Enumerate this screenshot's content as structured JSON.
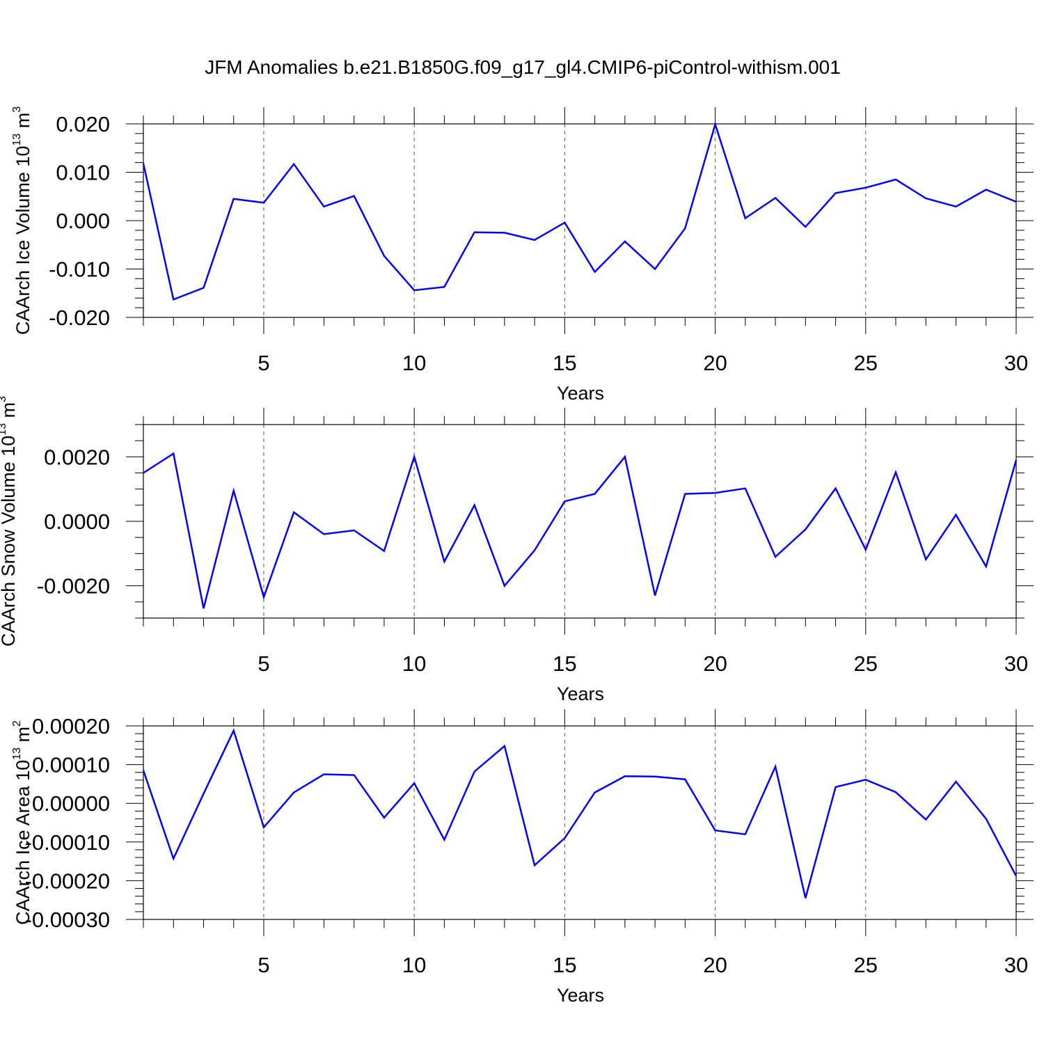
{
  "title": "JFM Anomalies b.e21.B1850G.f09_g17_gl4.CMIP6-piControl-withism.001",
  "chart_data": [
    {
      "type": "line",
      "xlabel": "Years",
      "ylabel": {
        "main": "CAArch Ice Volume 10",
        "sup": "13",
        "unit": " m",
        "unit_sup": "3"
      },
      "xlim": [
        1,
        30
      ],
      "ylim": [
        -0.02,
        0.02
      ],
      "xticks": [
        5,
        10,
        15,
        20,
        25,
        30
      ],
      "yticks": [
        -0.02,
        -0.01,
        0.0,
        0.01,
        0.02
      ],
      "ytick_labels": [
        "-0.020",
        "-0.010",
        "0.000",
        "0.010",
        "0.020"
      ],
      "y_minor_step": 0.002,
      "x": [
        1,
        2,
        3,
        4,
        5,
        6,
        7,
        8,
        9,
        10,
        11,
        12,
        13,
        14,
        15,
        16,
        17,
        18,
        19,
        20,
        21,
        22,
        23,
        24,
        25,
        26,
        27,
        28,
        29,
        30
      ],
      "values": [
        0.0118,
        -0.0163,
        -0.0139,
        0.0045,
        0.0037,
        0.0117,
        0.0029,
        0.0051,
        -0.0073,
        -0.0144,
        -0.0137,
        -0.0024,
        -0.0025,
        -0.004,
        -0.0004,
        -0.0106,
        -0.0043,
        -0.01,
        -0.0016,
        0.0199,
        0.0005,
        0.0047,
        -0.0013,
        0.0057,
        0.0068,
        0.0085,
        0.0046,
        0.0029,
        0.0064,
        0.0039
      ],
      "color": "#0000ff"
    },
    {
      "type": "line",
      "xlabel": "Years",
      "ylabel": {
        "main": "CAArch Snow Volume 10",
        "sup": "13",
        "unit": " m",
        "unit_sup": "3"
      },
      "xlim": [
        1,
        30
      ],
      "ylim": [
        -0.003,
        0.003
      ],
      "xticks": [
        5,
        10,
        15,
        20,
        25,
        30
      ],
      "yticks": [
        -0.002,
        0.0,
        0.002
      ],
      "ytick_labels": [
        "-0.0020",
        "0.0000",
        "0.0020"
      ],
      "y_minor_step": 0.0005,
      "x": [
        1,
        2,
        3,
        4,
        5,
        6,
        7,
        8,
        9,
        10,
        11,
        12,
        13,
        14,
        15,
        16,
        17,
        18,
        19,
        20,
        21,
        22,
        23,
        24,
        25,
        26,
        27,
        28,
        29,
        30
      ],
      "values": [
        0.0015,
        0.0021,
        -0.0027,
        0.00095,
        -0.00235,
        0.00028,
        -0.0004,
        -0.00028,
        -0.00092,
        0.002,
        -0.00125,
        0.0005,
        -0.002,
        -0.0009,
        0.00062,
        0.00085,
        0.002,
        -0.0023,
        0.00085,
        0.00088,
        0.00102,
        -0.0011,
        -0.00025,
        0.00102,
        -0.00088,
        0.00152,
        -0.00118,
        0.0002,
        -0.0014,
        0.0019
      ],
      "color": "#0000ff"
    },
    {
      "type": "line",
      "xlabel": "Years",
      "ylabel": {
        "main": "CAArch Ice Area 10",
        "sup": "13",
        "unit": " m",
        "unit_sup": "2"
      },
      "xlim": [
        1,
        30
      ],
      "ylim": [
        -0.0003,
        0.0002
      ],
      "xticks": [
        5,
        10,
        15,
        20,
        25,
        30
      ],
      "yticks": [
        -0.0003,
        -0.0002,
        -0.0001,
        0.0,
        0.0001,
        0.0002
      ],
      "ytick_labels": [
        "-0.00030",
        "-0.00020",
        "-0.00010",
        "0.00000",
        "0.00010",
        "0.00020"
      ],
      "y_minor_step": 2e-05,
      "x": [
        1,
        2,
        3,
        4,
        5,
        6,
        7,
        8,
        9,
        10,
        11,
        12,
        13,
        14,
        15,
        16,
        17,
        18,
        19,
        20,
        21,
        22,
        23,
        24,
        25,
        26,
        27,
        28,
        29,
        30
      ],
      "values": [
        8.5e-05,
        -0.000143,
        2.5e-05,
        0.000188,
        -6.2e-05,
        2.8e-05,
        7.5e-05,
        7.3e-05,
        -3.7e-05,
        5.2e-05,
        -9.4e-05,
        8.2e-05,
        0.000148,
        -0.00016,
        -9e-05,
        2.8e-05,
        7e-05,
        6.9e-05,
        6.2e-05,
        -7e-05,
        -8e-05,
        9.5e-05,
        -0.000245,
        4.2e-05,
        6.1e-05,
        2.9e-05,
        -4.2e-05,
        5.6e-05,
        -4e-05,
        -0.000188
      ],
      "color": "#0000ff"
    }
  ]
}
